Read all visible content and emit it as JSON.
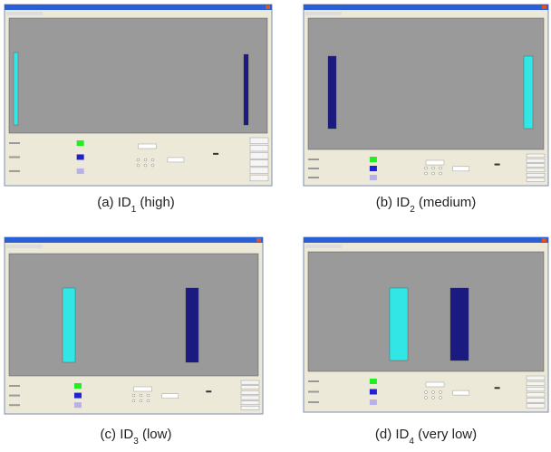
{
  "panels": [
    {
      "caption": {
        "prefix": "(a) ID",
        "sub": "1",
        "suffix": " (high)"
      }
    },
    {
      "caption": {
        "prefix": "(b) ID",
        "sub": "2",
        "suffix": " (medium)"
      }
    },
    {
      "caption": {
        "prefix": "(c) ID",
        "sub": "3",
        "suffix": " (low)"
      }
    },
    {
      "caption": {
        "prefix": "(d) ID",
        "sub": "4",
        "suffix": " (very low)"
      }
    }
  ]
}
